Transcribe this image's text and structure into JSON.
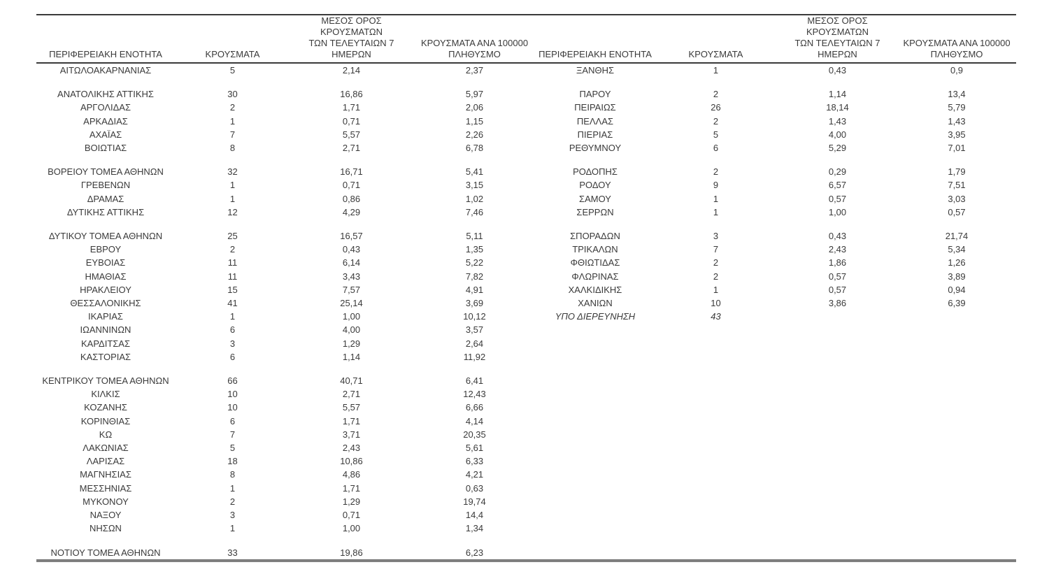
{
  "styles": {
    "text_color": "#3a3a3a",
    "header_rule_color": "#3a3a3a",
    "bottom_rule_color": "#808080",
    "background": "#ffffff"
  },
  "headers": {
    "region": "ΠΕΡΙΦΕΡΕΙΑΚΗ ΕΝΟΤΗΤΑ",
    "cases": "ΚΡΟΥΣΜΑΤΑ",
    "avg7": "ΜΕΣΟΣ ΟΡΟΣ ΚΡΟΥΣΜΑΤΩΝ\nΤΩΝ ΤΕΛΕΥΤΑΙΩΝ 7\nΗΜΕΡΩΝ",
    "per100k": "ΚΡΟΥΣΜΑΤΑ ΑΝΑ 100000\nΠΛΗΘΥΣΜΟ"
  },
  "left_table": {
    "rows": [
      {
        "name": "ΑΙΤΩΛΟΑΚΑΡΝΑΝΙΑΣ",
        "cases": "5",
        "avg7": "2,14",
        "per100k": "2,37"
      },
      {
        "spacer": true
      },
      {
        "name": "ΑΝΑΤΟΛΙΚΗΣ ΑΤΤΙΚΗΣ",
        "cases": "30",
        "avg7": "16,86",
        "per100k": "5,97"
      },
      {
        "name": "ΑΡΓΟΛΙΔΑΣ",
        "cases": "2",
        "avg7": "1,71",
        "per100k": "2,06"
      },
      {
        "name": "ΑΡΚΑΔΙΑΣ",
        "cases": "1",
        "avg7": "0,71",
        "per100k": "1,15"
      },
      {
        "name": "ΑΧΑΪΑΣ",
        "cases": "7",
        "avg7": "5,57",
        "per100k": "2,26"
      },
      {
        "name": "ΒΟΙΩΤΙΑΣ",
        "cases": "8",
        "avg7": "2,71",
        "per100k": "6,78"
      },
      {
        "spacer": true
      },
      {
        "name": "ΒΟΡΕΙΟΥ ΤΟΜΕΑ ΑΘΗΝΩΝ",
        "cases": "32",
        "avg7": "16,71",
        "per100k": "5,41"
      },
      {
        "name": "ΓΡΕΒΕΝΩΝ",
        "cases": "1",
        "avg7": "0,71",
        "per100k": "3,15"
      },
      {
        "name": "ΔΡΑΜΑΣ",
        "cases": "1",
        "avg7": "0,86",
        "per100k": "1,02"
      },
      {
        "name": "ΔΥΤΙΚΗΣ ΑΤΤΙΚΗΣ",
        "cases": "12",
        "avg7": "4,29",
        "per100k": "7,46"
      },
      {
        "spacer": true
      },
      {
        "name": "ΔΥΤΙΚΟΥ ΤΟΜΕΑ ΑΘΗΝΩΝ",
        "cases": "25",
        "avg7": "16,57",
        "per100k": "5,11"
      },
      {
        "name": "ΕΒΡΟΥ",
        "cases": "2",
        "avg7": "0,43",
        "per100k": "1,35"
      },
      {
        "name": "ΕΥΒΟΙΑΣ",
        "cases": "11",
        "avg7": "6,14",
        "per100k": "5,22"
      },
      {
        "name": "ΗΜΑΘΙΑΣ",
        "cases": "11",
        "avg7": "3,43",
        "per100k": "7,82"
      },
      {
        "name": "ΗΡΑΚΛΕΙΟΥ",
        "cases": "15",
        "avg7": "7,57",
        "per100k": "4,91"
      },
      {
        "name": "ΘΕΣΣΑΛΟΝΙΚΗΣ",
        "cases": "41",
        "avg7": "25,14",
        "per100k": "3,69"
      },
      {
        "name": "ΙΚΑΡΙΑΣ",
        "cases": "1",
        "avg7": "1,00",
        "per100k": "10,12"
      },
      {
        "name": "ΙΩΑΝΝΙΝΩΝ",
        "cases": "6",
        "avg7": "4,00",
        "per100k": "3,57"
      },
      {
        "name": "ΚΑΡΔΙΤΣΑΣ",
        "cases": "3",
        "avg7": "1,29",
        "per100k": "2,64"
      },
      {
        "name": "ΚΑΣΤΟΡΙΑΣ",
        "cases": "6",
        "avg7": "1,14",
        "per100k": "11,92"
      },
      {
        "spacer": true
      },
      {
        "name": "ΚΕΝΤΡΙΚΟΥ ΤΟΜΕΑ ΑΘΗΝΩΝ",
        "cases": "66",
        "avg7": "40,71",
        "per100k": "6,41"
      },
      {
        "name": "ΚΙΛΚΙΣ",
        "cases": "10",
        "avg7": "2,71",
        "per100k": "12,43"
      },
      {
        "name": "ΚΟΖΑΝΗΣ",
        "cases": "10",
        "avg7": "5,57",
        "per100k": "6,66"
      },
      {
        "name": "ΚΟΡΙΝΘΙΑΣ",
        "cases": "6",
        "avg7": "1,71",
        "per100k": "4,14"
      },
      {
        "name": "ΚΩ",
        "cases": "7",
        "avg7": "3,71",
        "per100k": "20,35"
      },
      {
        "name": "ΛΑΚΩΝΙΑΣ",
        "cases": "5",
        "avg7": "2,43",
        "per100k": "5,61"
      },
      {
        "name": "ΛΑΡΙΣΑΣ",
        "cases": "18",
        "avg7": "10,86",
        "per100k": "6,33"
      },
      {
        "name": "ΜΑΓΝΗΣΙΑΣ",
        "cases": "8",
        "avg7": "4,86",
        "per100k": "4,21"
      },
      {
        "name": "ΜΕΣΣΗΝΙΑΣ",
        "cases": "1",
        "avg7": "1,71",
        "per100k": "0,63"
      },
      {
        "name": "ΜΥΚΟΝΟΥ",
        "cases": "2",
        "avg7": "1,29",
        "per100k": "19,74"
      },
      {
        "name": "ΝΑΞΟΥ",
        "cases": "3",
        "avg7": "0,71",
        "per100k": "14,4"
      },
      {
        "name": "ΝΗΣΩΝ",
        "cases": "1",
        "avg7": "1,00",
        "per100k": "1,34"
      },
      {
        "spacer": true
      },
      {
        "name": "ΝΟΤΙΟΥ ΤΟΜΕΑ ΑΘΗΝΩΝ",
        "cases": "33",
        "avg7": "19,86",
        "per100k": "6,23"
      }
    ]
  },
  "right_table": {
    "rows": [
      {
        "name": "ΞΑΝΘΗΣ",
        "cases": "1",
        "avg7": "0,43",
        "per100k": "0,9"
      },
      {
        "spacer": true
      },
      {
        "name": "ΠΑΡΟΥ",
        "cases": "2",
        "avg7": "1,14",
        "per100k": "13,4"
      },
      {
        "name": "ΠΕΙΡΑΙΩΣ",
        "cases": "26",
        "avg7": "18,14",
        "per100k": "5,79"
      },
      {
        "name": "ΠΕΛΛΑΣ",
        "cases": "2",
        "avg7": "1,43",
        "per100k": "1,43"
      },
      {
        "name": "ΠΙΕΡΙΑΣ",
        "cases": "5",
        "avg7": "4,00",
        "per100k": "3,95"
      },
      {
        "name": "ΡΕΘΥΜΝΟΥ",
        "cases": "6",
        "avg7": "5,29",
        "per100k": "7,01"
      },
      {
        "spacer": true
      },
      {
        "name": "ΡΟΔΟΠΗΣ",
        "cases": "2",
        "avg7": "0,29",
        "per100k": "1,79"
      },
      {
        "name": "ΡΟΔΟΥ",
        "cases": "9",
        "avg7": "6,57",
        "per100k": "7,51"
      },
      {
        "name": "ΣΑΜΟΥ",
        "cases": "1",
        "avg7": "0,57",
        "per100k": "3,03"
      },
      {
        "name": "ΣΕΡΡΩΝ",
        "cases": "1",
        "avg7": "1,00",
        "per100k": "0,57"
      },
      {
        "spacer": true
      },
      {
        "name": "ΣΠΟΡΑΔΩΝ",
        "cases": "3",
        "avg7": "0,43",
        "per100k": "21,74"
      },
      {
        "name": "ΤΡΙΚΑΛΩΝ",
        "cases": "7",
        "avg7": "2,43",
        "per100k": "5,34"
      },
      {
        "name": "ΦΘΙΩΤΙΔΑΣ",
        "cases": "2",
        "avg7": "1,86",
        "per100k": "1,26"
      },
      {
        "name": "ΦΛΩΡΙΝΑΣ",
        "cases": "2",
        "avg7": "0,57",
        "per100k": "3,89"
      },
      {
        "name": "ΧΑΛΚΙΔΙΚΗΣ",
        "cases": "1",
        "avg7": "0,57",
        "per100k": "0,94"
      },
      {
        "name": "ΧΑΝΙΩΝ",
        "cases": "10",
        "avg7": "3,86",
        "per100k": "6,39"
      },
      {
        "name": "ΥΠΟ ΔΙΕΡΕΥΝΗΣΗ",
        "cases": "43",
        "avg7": "",
        "per100k": "",
        "italic": true
      }
    ]
  }
}
